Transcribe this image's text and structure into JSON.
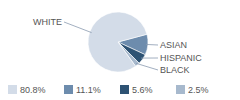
{
  "chart_data": {
    "type": "pie",
    "categories": [
      "WHITE",
      "ASIAN",
      "HISPANIC",
      "BLACK"
    ],
    "values": [
      80.8,
      11.1,
      5.6,
      2.5
    ],
    "value_labels": [
      "80.8%",
      "11.1%",
      "5.6%",
      "2.5%"
    ],
    "colors": [
      "#d3dce8",
      "#6d8cad",
      "#2d5273",
      "#a7b9cd"
    ],
    "legend": "bottom"
  }
}
